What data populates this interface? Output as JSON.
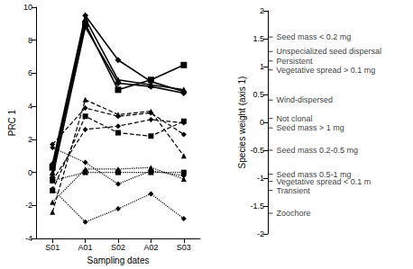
{
  "chart_data": {
    "type": "line",
    "x_label": "Sampling dates",
    "y_label": "PRC 1",
    "y2_label": "Species weight (axis 1)",
    "categories": [
      "S01",
      "A01",
      "S02",
      "A02",
      "S03"
    ],
    "ylim": [
      -4,
      10
    ],
    "yticks": [
      -4,
      -2,
      0,
      2,
      4,
      6,
      8,
      10
    ],
    "y2lim": [
      -2,
      2
    ],
    "y2ticks": [
      -2,
      -1.5,
      -1,
      -0.5,
      0,
      0.5,
      1,
      1.5,
      2
    ],
    "grid": false,
    "series": [
      {
        "color": "#000000",
        "line_style": "solid",
        "marker": "diamond",
        "values": [
          0.5,
          9.5,
          6.8,
          5.5,
          4.9
        ]
      },
      {
        "color": "#000000",
        "line_style": "solid",
        "marker": "square",
        "values": [
          0.3,
          9.0,
          5.0,
          5.6,
          6.5
        ]
      },
      {
        "color": "#000000",
        "line_style": "solid",
        "marker": "triangle",
        "values": [
          0.0,
          9.3,
          5.6,
          5.3,
          5.0
        ]
      },
      {
        "color": "#000000",
        "line_style": "solid",
        "marker": "diamond",
        "values": [
          -0.3,
          8.8,
          5.4,
          5.2,
          4.8
        ]
      },
      {
        "color": "#000000",
        "line_style": "dashed",
        "marker": "triangle",
        "values": [
          -2.4,
          4.4,
          3.5,
          3.7,
          1.0
        ]
      },
      {
        "color": "#000000",
        "line_style": "dashed",
        "marker": "diamond",
        "values": [
          1.7,
          3.9,
          3.4,
          3.6,
          2.3
        ]
      },
      {
        "color": "#000000",
        "line_style": "dashed",
        "marker": "square",
        "values": [
          -1.1,
          3.4,
          2.4,
          2.2,
          3.1
        ]
      },
      {
        "color": "#000000",
        "line_style": "dashed",
        "marker": "diamond",
        "values": [
          -0.5,
          2.6,
          2.8,
          3.2,
          3.0
        ]
      },
      {
        "color": "#000000",
        "line_style": "dotted",
        "marker": "diamond",
        "values": [
          1.5,
          0.6,
          -0.7,
          0.1,
          -0.2
        ]
      },
      {
        "color": "#000000",
        "line_style": "dotted",
        "marker": "square",
        "values": [
          -0.5,
          0.0,
          0.0,
          0.0,
          0.0
        ]
      },
      {
        "color": "#000000",
        "line_style": "dotted",
        "marker": "triangle",
        "values": [
          -1.8,
          0.2,
          0.2,
          0.3,
          -0.4
        ]
      },
      {
        "color": "#000000",
        "line_style": "dotted",
        "marker": "diamond",
        "values": [
          -1.0,
          -3.0,
          -2.2,
          -1.3,
          -2.8
        ]
      }
    ],
    "annotations": [
      {
        "text": "Seed mass < 0.2 mg",
        "y2": 1.53
      },
      {
        "text": "Unspecialized seed dispersal",
        "y2": 1.27
      },
      {
        "text": "Persistent",
        "y2": 1.1
      },
      {
        "text": "Vegetative spread > 0.1 mg",
        "y2": 0.94
      },
      {
        "text": "Wind-dispersed",
        "y2": 0.4
      },
      {
        "text": "Not clonal",
        "y2": 0.07
      },
      {
        "text": "Seed mass > 1 mg",
        "y2": -0.1
      },
      {
        "text": "Seed mass 0.2-0.5 mg",
        "y2": -0.5
      },
      {
        "text": "Seed mass 0.5-1 mg",
        "y2": -0.93
      },
      {
        "text": "Vegetative spread < 0.1 m",
        "y2": -1.06
      },
      {
        "text": "Transient",
        "y2": -1.22
      },
      {
        "text": "Zoochore",
        "y2": -1.63
      }
    ]
  }
}
